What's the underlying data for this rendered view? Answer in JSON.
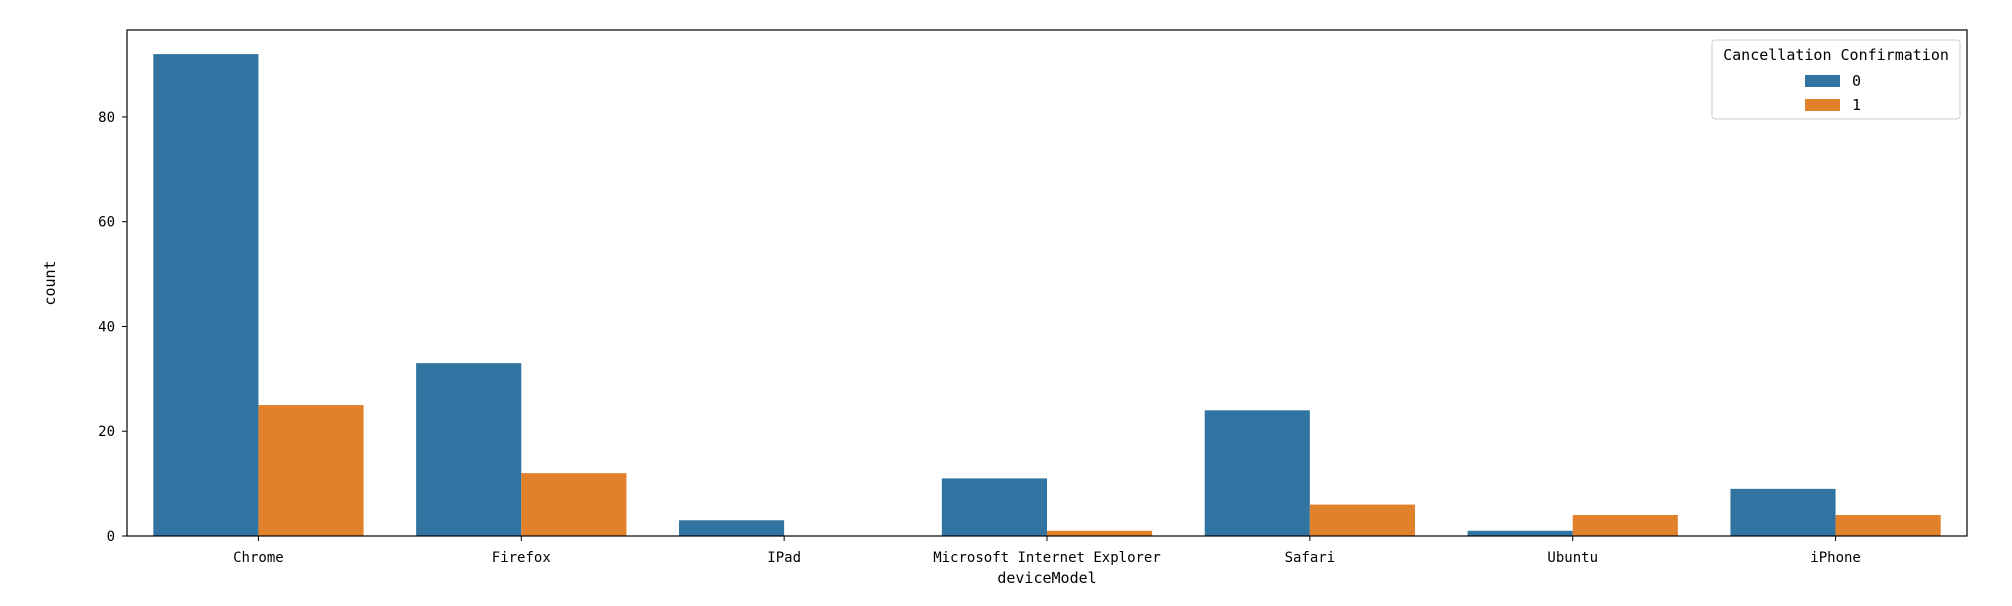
{
  "chart_data": {
    "type": "bar",
    "title": "",
    "xlabel": "deviceModel",
    "ylabel": "count",
    "categories": [
      "Chrome",
      "Firefox",
      "IPad",
      "Microsoft Internet Explorer",
      "Safari",
      "Ubuntu",
      "iPhone"
    ],
    "series": [
      {
        "name": "0",
        "values": [
          92,
          33,
          3,
          11,
          24,
          1,
          9
        ]
      },
      {
        "name": "1",
        "values": [
          25,
          12,
          0,
          1,
          6,
          4,
          4
        ]
      }
    ],
    "ylim": [
      0,
      96.6
    ],
    "yticks": [
      0,
      20,
      40,
      60,
      80
    ],
    "legend": {
      "title": "Cancellation Confirmation",
      "position": "top-right"
    },
    "grid": false,
    "colors": {
      "series_0": "#3274a1",
      "series_1": "#e1812c",
      "axes": "#000000"
    }
  }
}
